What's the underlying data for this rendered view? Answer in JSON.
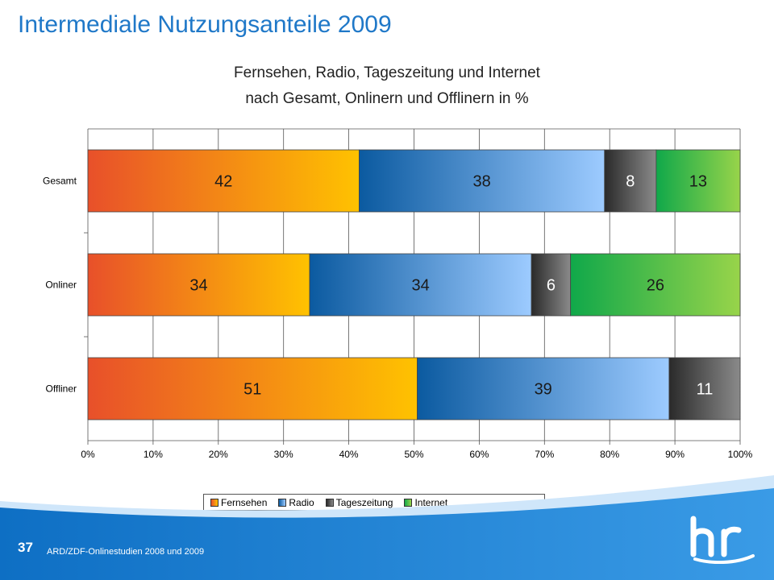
{
  "slide": {
    "title": "Intermediale Nutzungsanteile 2009",
    "subtitle_line1": "Fernsehen, Radio, Tageszeitung und Internet",
    "subtitle_line2": "nach Gesamt, Onlinern und Offlinern in %",
    "page_number": "37",
    "source": "ARD/ZDF-Onlinestudien 2008 und 2009",
    "logo_text": "hr"
  },
  "colors": {
    "title": "#1f78c8",
    "Fernsehen": [
      "#e8502a",
      "#ffc200"
    ],
    "Radio": [
      "#0b5aa0",
      "#9dcbff"
    ],
    "Tageszeitung": [
      "#2a2a2a",
      "#8a8a8a"
    ],
    "Internet": [
      "#10a84a",
      "#98d44a"
    ],
    "footer": "#1e7fd0"
  },
  "chart_data": {
    "type": "bar",
    "orientation": "horizontal",
    "stacked": true,
    "categories": [
      "Gesamt",
      "Onliner",
      "Offliner"
    ],
    "series": [
      {
        "name": "Fernsehen",
        "values": [
          42,
          34,
          51
        ]
      },
      {
        "name": "Radio",
        "values": [
          38,
          34,
          39
        ]
      },
      {
        "name": "Tageszeitung",
        "values": [
          8,
          6,
          11
        ]
      },
      {
        "name": "Internet",
        "values": [
          13,
          26,
          0
        ]
      }
    ],
    "data_labels": [
      [
        "42",
        "34",
        "51"
      ],
      [
        "38",
        "34",
        "39"
      ],
      [
        "8",
        "6",
        "11"
      ],
      [
        "13",
        "26",
        ""
      ]
    ],
    "xlim": [
      0,
      100
    ],
    "x_ticks": [
      "0%",
      "10%",
      "20%",
      "30%",
      "40%",
      "50%",
      "60%",
      "70%",
      "80%",
      "90%",
      "100%"
    ],
    "grid": true,
    "legend_position": "bottom"
  }
}
